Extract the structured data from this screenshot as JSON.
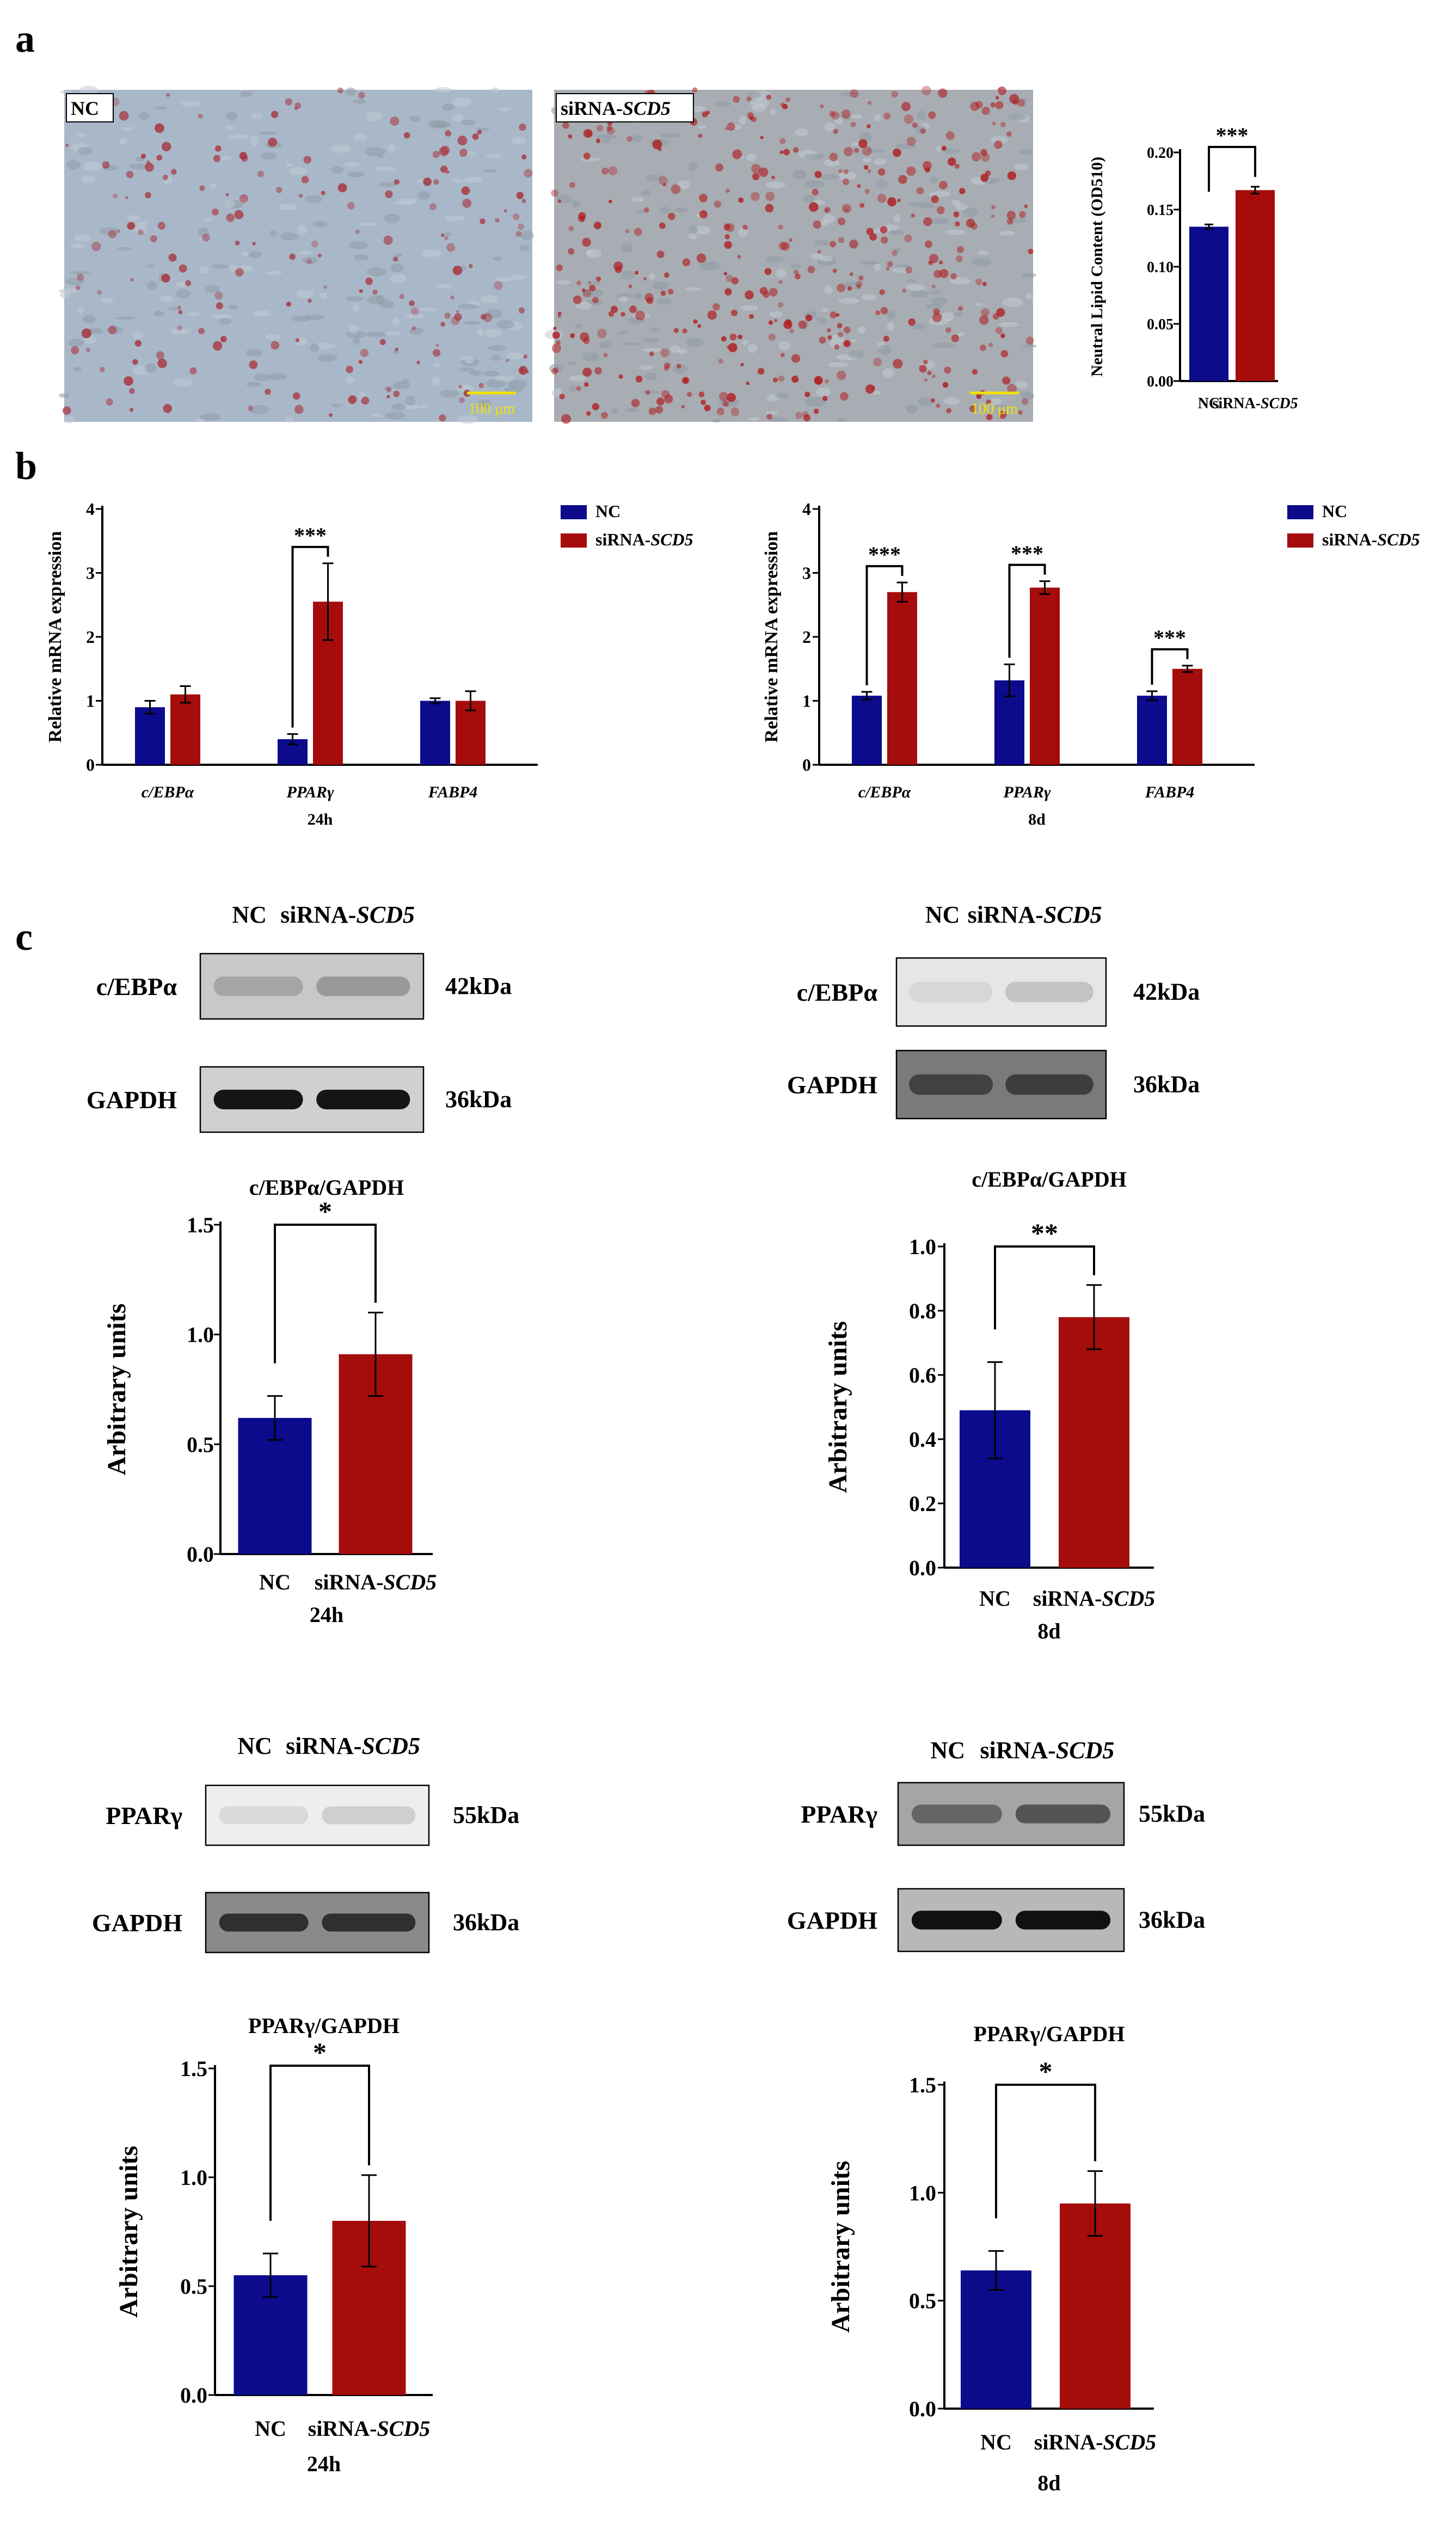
{
  "figure": {
    "panel_labels": [
      "a",
      "b",
      "c"
    ],
    "micrographs": [
      {
        "label": "NC",
        "scale_bar": "100 μm",
        "tone": "#a9b8c9",
        "stain": "#a8323b",
        "stain_density": 0.35
      },
      {
        "label_prefix": "siRNA-",
        "label_gene": "SCD5",
        "scale_bar": "100 μm",
        "tone": "#a7adb2",
        "stain": "#b01f22",
        "stain_density": 1.0
      }
    ],
    "blots": [
      {
        "id": "b1",
        "header_nc": "NC",
        "header_si_prefix": "siRNA-",
        "header_si_gene": "SCD5",
        "rows": [
          {
            "protein": "c/EBPα",
            "kda": "42kDa",
            "bg": "#c8c8c8",
            "band": "#7a7a7a",
            "nc": 0.45,
            "si": 0.6
          },
          {
            "protein": "GAPDH",
            "kda": "36kDa",
            "bg": "#d0d0d0",
            "band": "#151515",
            "nc": 1.0,
            "si": 1.0
          }
        ]
      },
      {
        "id": "b2",
        "header_nc": "NC",
        "header_si_prefix": "siRNA-",
        "header_si_gene": "SCD5",
        "rows": [
          {
            "protein": "c/EBPα",
            "kda": "42kDa",
            "bg": "#e6e6e6",
            "band": "#9a9a9a",
            "nc": 0.2,
            "si": 0.45
          },
          {
            "protein": "GAPDH",
            "kda": "36kDa",
            "bg": "#7a7a7a",
            "band": "#2a2a2a",
            "nc": 0.7,
            "si": 0.75
          }
        ]
      },
      {
        "id": "b3",
        "header_nc": "NC",
        "header_si_prefix": "siRNA-",
        "header_si_gene": "SCD5",
        "rows": [
          {
            "protein": "PPARγ",
            "kda": "55kDa",
            "bg": "#eeeeee",
            "band": "#a0a0a0",
            "nc": 0.25,
            "si": 0.4
          },
          {
            "protein": "GAPDH",
            "kda": "36kDa",
            "bg": "#8a8a8a",
            "band": "#1e1e1e",
            "nc": 0.85,
            "si": 0.85
          }
        ]
      },
      {
        "id": "b4",
        "header_nc": "NC",
        "header_si_prefix": "siRNA-",
        "header_si_gene": "SCD5",
        "rows": [
          {
            "protein": "PPARγ",
            "kda": "55kDa",
            "bg": "#a5a5a5",
            "band": "#3a3a3a",
            "nc": 0.6,
            "si": 0.75
          },
          {
            "protein": "GAPDH",
            "kda": "36kDa",
            "bg": "#b8b8b8",
            "band": "#111111",
            "nc": 1.0,
            "si": 1.0
          }
        ]
      }
    ]
  },
  "colors": {
    "nc": "#0b0b8c",
    "si": "#a50c0c"
  },
  "chart_data": [
    {
      "id": "a",
      "type": "bar",
      "title": "",
      "ylabel": "Neutral Lipid Content (OD510)",
      "xlabel": "",
      "categories": [
        "NC",
        "siRNA-SCD5"
      ],
      "values": [
        0.135,
        0.167
      ],
      "errors": [
        0.002,
        0.003
      ],
      "ylim": [
        0,
        0.2
      ],
      "yticks": [
        "0.00",
        "0.05",
        "0.10",
        "0.15",
        "0.20"
      ],
      "significance": "***"
    },
    {
      "id": "b1",
      "type": "bar",
      "ylabel": "Relative mRNA expression",
      "xlabel": "24h",
      "categories": [
        "c/EBPα",
        "PPARγ",
        "FABP4"
      ],
      "legend": [
        "NC",
        "siRNA-SCD5"
      ],
      "series": [
        {
          "name": "NC",
          "values": [
            0.9,
            0.4,
            1.0
          ],
          "errors": [
            0.1,
            0.08,
            0.04
          ]
        },
        {
          "name": "siRNA-SCD5",
          "values": [
            1.1,
            2.55,
            1.0
          ],
          "errors": [
            0.13,
            0.6,
            0.15
          ]
        }
      ],
      "ylim": [
        0,
        4
      ],
      "yticks": [
        "0",
        "1",
        "2",
        "3",
        "4"
      ],
      "significance": [
        null,
        "***",
        null
      ]
    },
    {
      "id": "b2",
      "type": "bar",
      "ylabel": "Relative mRNA expression",
      "xlabel": "8d",
      "categories": [
        "c/EBPα",
        "PPARγ",
        "FABP4"
      ],
      "legend": [
        "NC",
        "siRNA-SCD5"
      ],
      "series": [
        {
          "name": "NC",
          "values": [
            1.08,
            1.32,
            1.08
          ],
          "errors": [
            0.06,
            0.25,
            0.07
          ]
        },
        {
          "name": "siRNA-SCD5",
          "values": [
            2.7,
            2.77,
            1.5
          ],
          "errors": [
            0.15,
            0.1,
            0.05
          ]
        }
      ],
      "ylim": [
        0,
        4
      ],
      "yticks": [
        "0",
        "1",
        "2",
        "3",
        "4"
      ],
      "significance": [
        "***",
        "***",
        "***"
      ]
    },
    {
      "id": "c1",
      "type": "bar",
      "title": "c/EBPα/GAPDH",
      "ylabel": "Arbitrary units",
      "xlabel": "24h",
      "categories": [
        "NC",
        "siRNA-SCD5"
      ],
      "values": [
        0.62,
        0.91
      ],
      "errors": [
        0.1,
        0.19
      ],
      "ylim": [
        0,
        1.5
      ],
      "yticks": [
        "0.0",
        "0.5",
        "1.0",
        "1.5"
      ],
      "significance": "*"
    },
    {
      "id": "c2",
      "type": "bar",
      "title": "c/EBPα/GAPDH",
      "ylabel": "Arbitrary units",
      "xlabel": "8d",
      "categories": [
        "NC",
        "siRNA-SCD5"
      ],
      "values": [
        0.49,
        0.78
      ],
      "errors": [
        0.15,
        0.1
      ],
      "ylim": [
        0,
        1.0
      ],
      "yticks": [
        "0.0",
        "0.2",
        "0.4",
        "0.6",
        "0.8",
        "1.0"
      ],
      "significance": "**"
    },
    {
      "id": "c3",
      "type": "bar",
      "title": "PPARγ/GAPDH",
      "ylabel": "Arbitrary units",
      "xlabel": "24h",
      "categories": [
        "NC",
        "siRNA-SCD5"
      ],
      "values": [
        0.55,
        0.8
      ],
      "errors": [
        0.1,
        0.21
      ],
      "ylim": [
        0,
        1.5
      ],
      "yticks": [
        "0.0",
        "0.5",
        "1.0",
        "1.5"
      ],
      "significance": "*"
    },
    {
      "id": "c4",
      "type": "bar",
      "title": "PPARγ/GAPDH",
      "ylabel": "Arbitrary units",
      "xlabel": "8d",
      "categories": [
        "NC",
        "siRNA-SCD5"
      ],
      "values": [
        0.64,
        0.95
      ],
      "errors": [
        0.09,
        0.15
      ],
      "ylim": [
        0,
        1.5
      ],
      "yticks": [
        "0.0",
        "0.5",
        "1.0",
        "1.5"
      ],
      "significance": "*"
    }
  ]
}
